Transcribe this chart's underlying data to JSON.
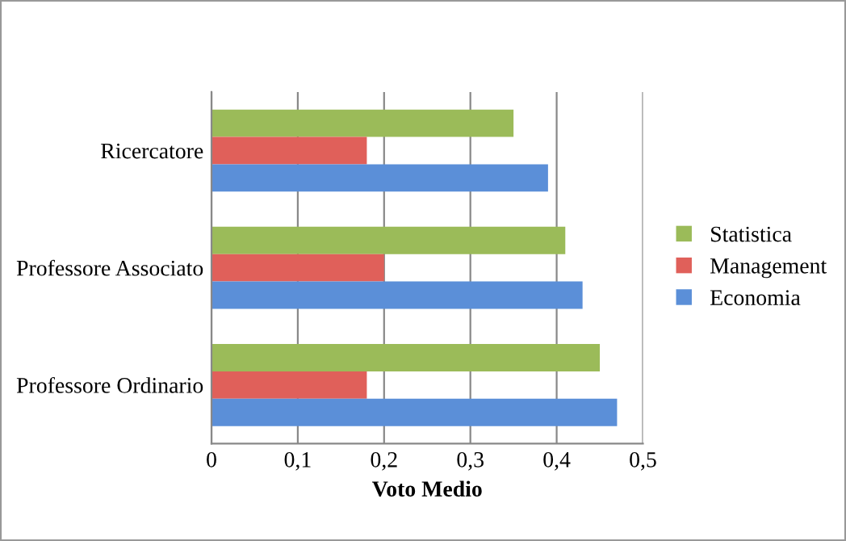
{
  "chart_data": {
    "type": "bar",
    "orientation": "horizontal",
    "xlabel": "Voto Medio",
    "categories": [
      "Ricercatore",
      "Professore Associato",
      "Professore Ordinario"
    ],
    "series": [
      {
        "name": "Statistica",
        "color": "#9bbb59",
        "values": [
          0.35,
          0.41,
          0.45
        ]
      },
      {
        "name": "Management",
        "color": "#e0605a",
        "values": [
          0.18,
          0.2,
          0.18
        ]
      },
      {
        "name": "Economia",
        "color": "#5b8fd8",
        "values": [
          0.39,
          0.43,
          0.47
        ]
      }
    ],
    "xlim": [
      0,
      0.5
    ],
    "xticks": [
      0,
      {
        "value": 0.1,
        "label": "0,1"
      },
      {
        "value": 0.2,
        "label": "0,2"
      },
      {
        "value": 0.3,
        "label": "0,3"
      },
      {
        "value": 0.4,
        "label": "0,4"
      },
      {
        "value": 0.5,
        "label": "0,5"
      }
    ],
    "grid": "x",
    "legend": "right"
  }
}
